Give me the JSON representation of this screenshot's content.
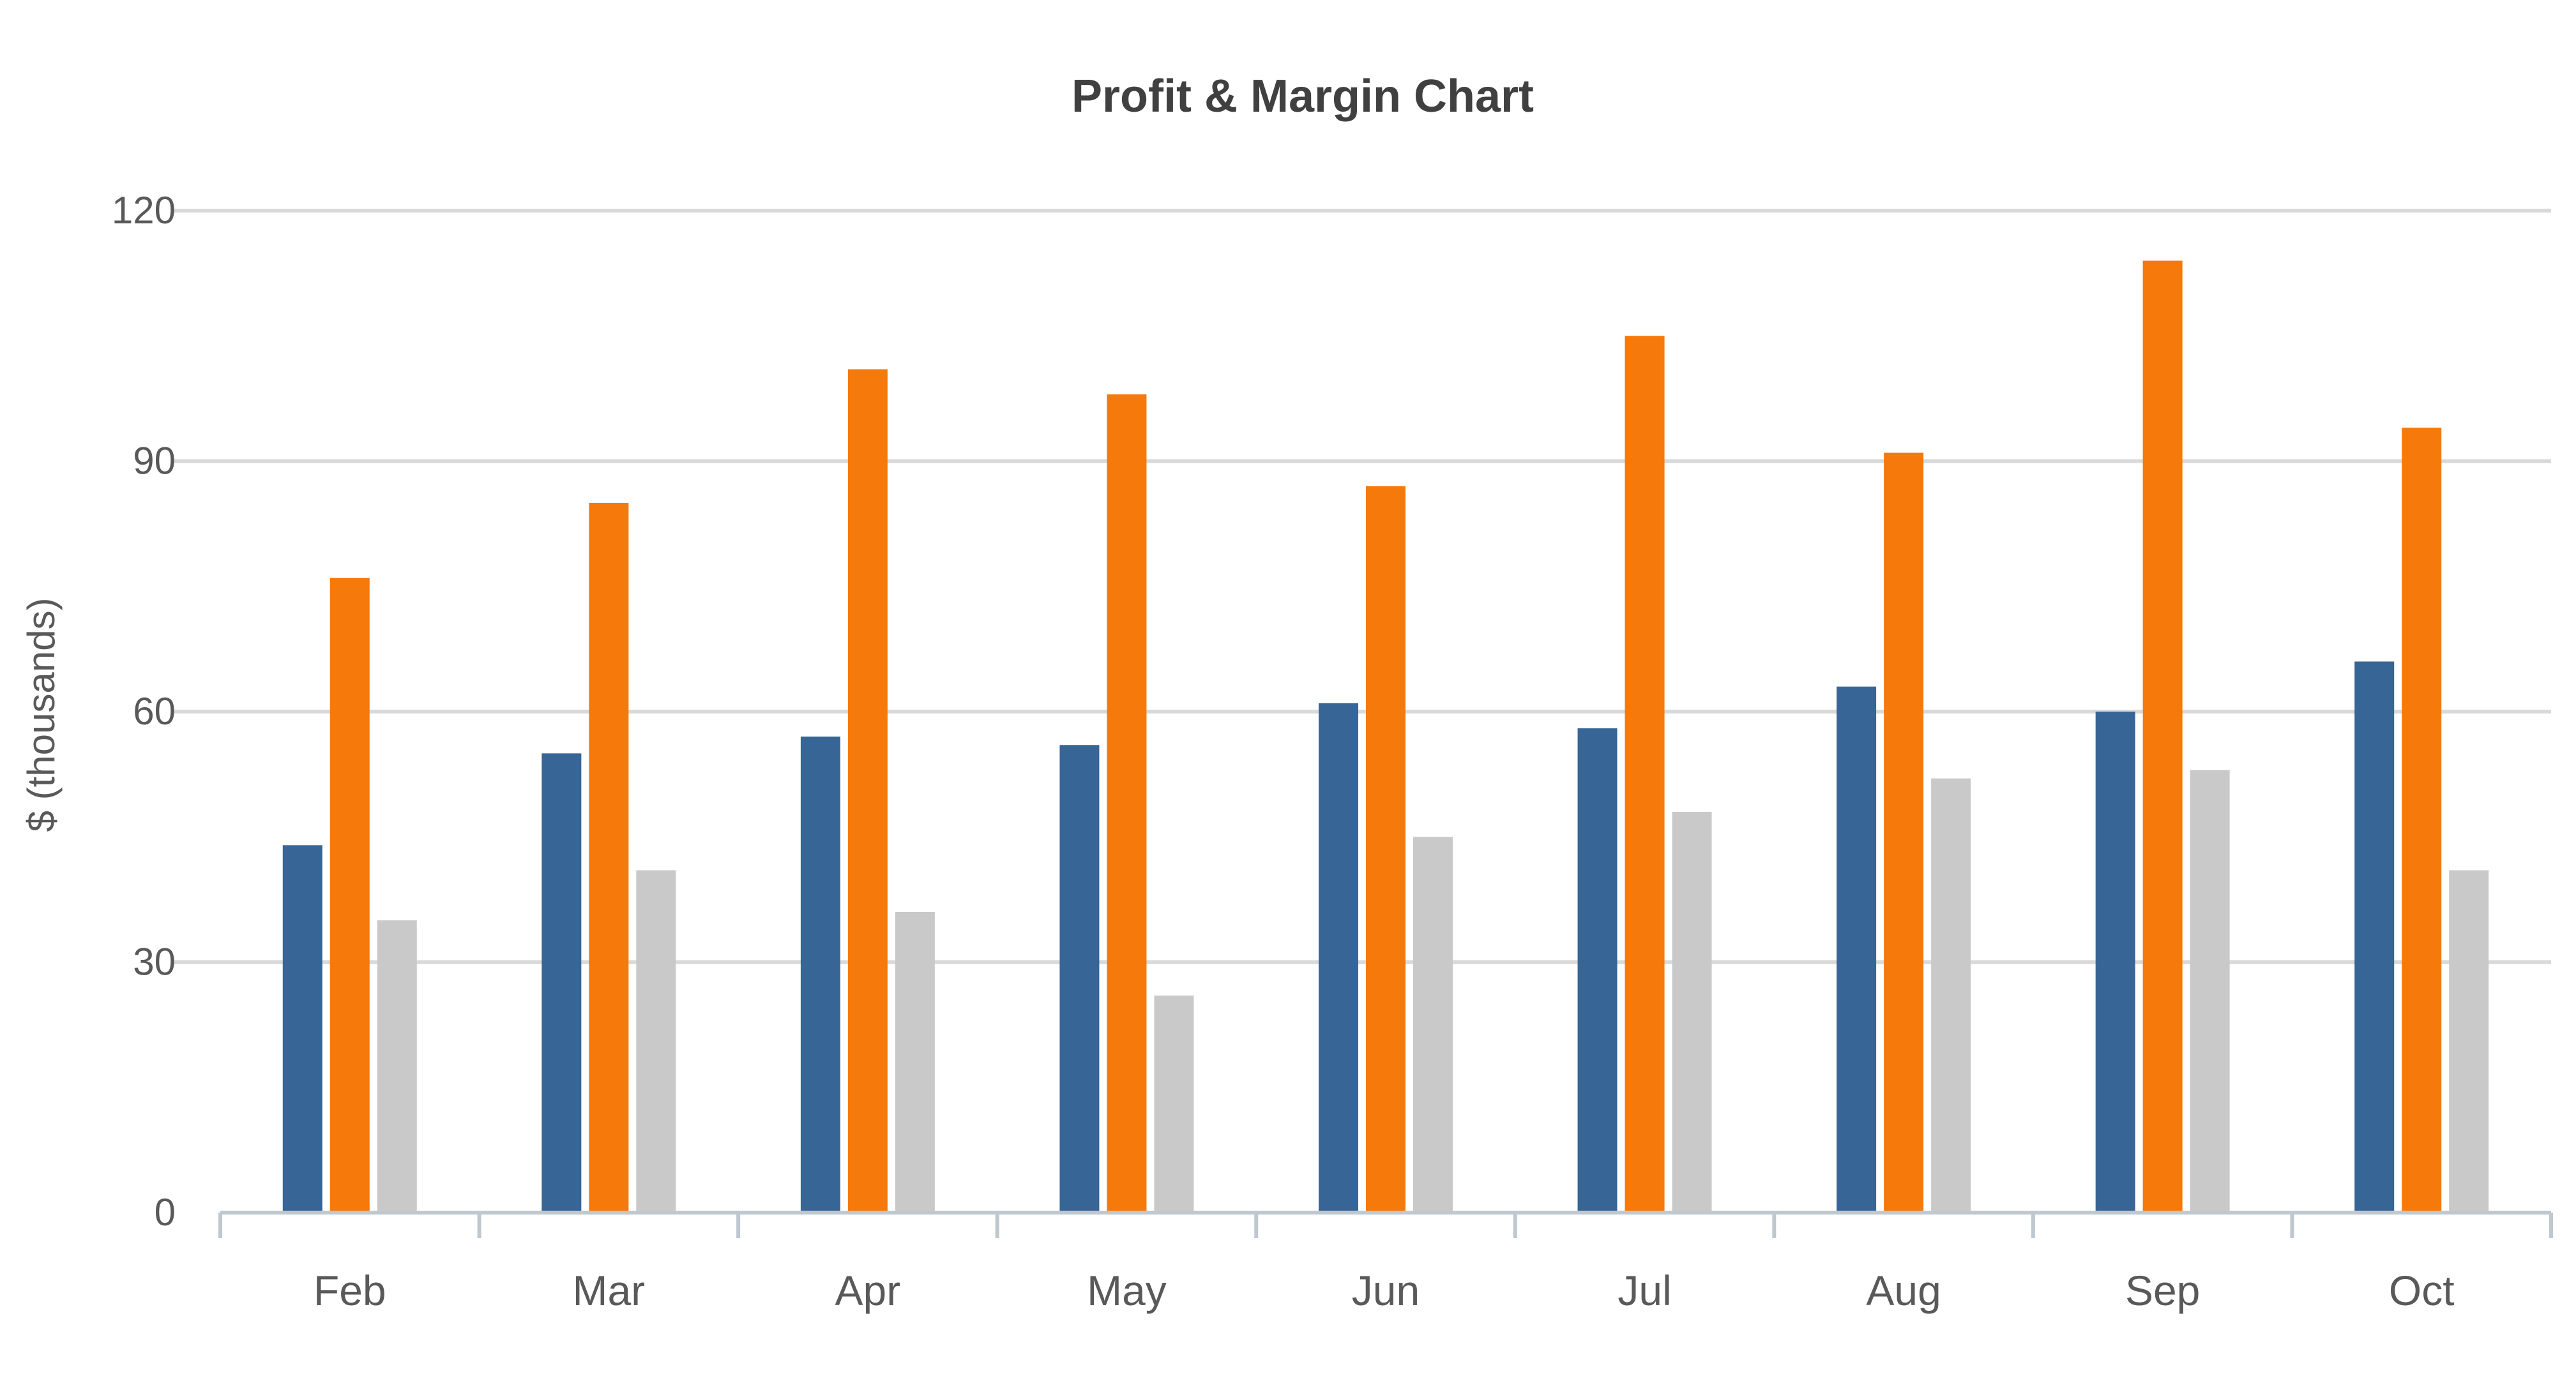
{
  "chart_data": {
    "type": "bar",
    "title": "Profit & Margin Chart",
    "xlabel": "",
    "ylabel": "$ (thousands)",
    "ylim": [
      0,
      120
    ],
    "yticks": [
      0,
      30,
      60,
      90,
      120
    ],
    "grid": true,
    "legend": "none",
    "categories": [
      "Feb",
      "Mar",
      "Apr",
      "May",
      "Jun",
      "Jul",
      "Aug",
      "Sep",
      "Oct"
    ],
    "series": [
      {
        "color": "#376596",
        "values": [
          44,
          55,
          57,
          56,
          61,
          58,
          63,
          60,
          66
        ]
      },
      {
        "color": "#F6790B",
        "values": [
          76,
          85,
          101,
          98,
          87,
          105,
          91,
          114,
          94
        ]
      },
      {
        "color": "#C9C9C9",
        "values": [
          35,
          41,
          36,
          26,
          45,
          48,
          52,
          53,
          41
        ]
      }
    ]
  },
  "colors": {
    "grid": "#D9D9D9",
    "axis": "#BFC7CF",
    "text": "#595959",
    "title": "#404040"
  }
}
